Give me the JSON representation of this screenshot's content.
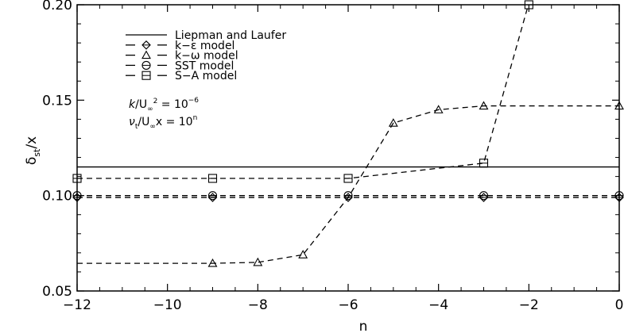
{
  "chart_data": {
    "type": "line",
    "xlabel": "n",
    "ylabel": "δst/x",
    "ylabel_main": "δ",
    "ylabel_sub": "st",
    "ylabel_rest": "/x",
    "xlim": [
      -12,
      0
    ],
    "ylim": [
      0.05,
      0.2
    ],
    "xticks": [
      -12,
      -10,
      -8,
      -6,
      -4,
      -2,
      0
    ],
    "xtick_labels": [
      "−12",
      "−10",
      "−8",
      "−6",
      "−4",
      "−2",
      "0"
    ],
    "yticks": [
      0.05,
      0.1,
      0.15,
      0.2
    ],
    "ytick_labels": [
      "0.05",
      "0.10",
      "0.15",
      "0.20"
    ],
    "grid": false,
    "legend_position": "top-left",
    "series": [
      {
        "name": "Liepman and Laufer",
        "marker": "none",
        "line": "solid",
        "x": [
          -12,
          0
        ],
        "y": [
          0.115,
          0.115
        ]
      },
      {
        "name": "k−ε model",
        "marker": "diamond",
        "line": "dashed",
        "x": [
          -12,
          -9,
          -6,
          -3,
          0
        ],
        "y": [
          0.099,
          0.099,
          0.099,
          0.099,
          0.099
        ]
      },
      {
        "name": "k−ω model",
        "marker": "triangle",
        "line": "dashed",
        "x": [
          -12,
          -9,
          -8,
          -7,
          -6,
          -5,
          -4,
          -3,
          -2,
          -1,
          0
        ],
        "y": [
          0.0645,
          0.0645,
          0.065,
          0.069,
          0.099,
          0.138,
          0.145,
          0.147,
          0.147,
          0.147,
          0.147
        ],
        "marked": [
          -9,
          -8,
          -7,
          -5,
          -4,
          -3,
          0
        ]
      },
      {
        "name": "SST model",
        "marker": "circle",
        "line": "dashed",
        "x": [
          -12,
          -9,
          -6,
          -3,
          0
        ],
        "y": [
          0.1,
          0.1,
          0.1,
          0.1,
          0.1
        ]
      },
      {
        "name": "S−A model",
        "marker": "square",
        "line": "dashed",
        "x": [
          -12,
          -9,
          -6,
          -3,
          -2
        ],
        "y": [
          0.109,
          0.109,
          0.109,
          0.117,
          0.201
        ]
      }
    ],
    "annotations": {
      "line1": {
        "lhs_var": "k",
        "lhs_rest": "/U",
        "lhs_sub": "∞",
        "lhs_sup": "2",
        "mid": " = 10",
        "exp": "−6"
      },
      "line2": {
        "lhs_var": "ν",
        "lhs_sub1": "t",
        "lhs_rest": "/U",
        "lhs_sub2": "∞",
        "lhs_rest2": "x = 10",
        "exp": "n"
      }
    }
  }
}
